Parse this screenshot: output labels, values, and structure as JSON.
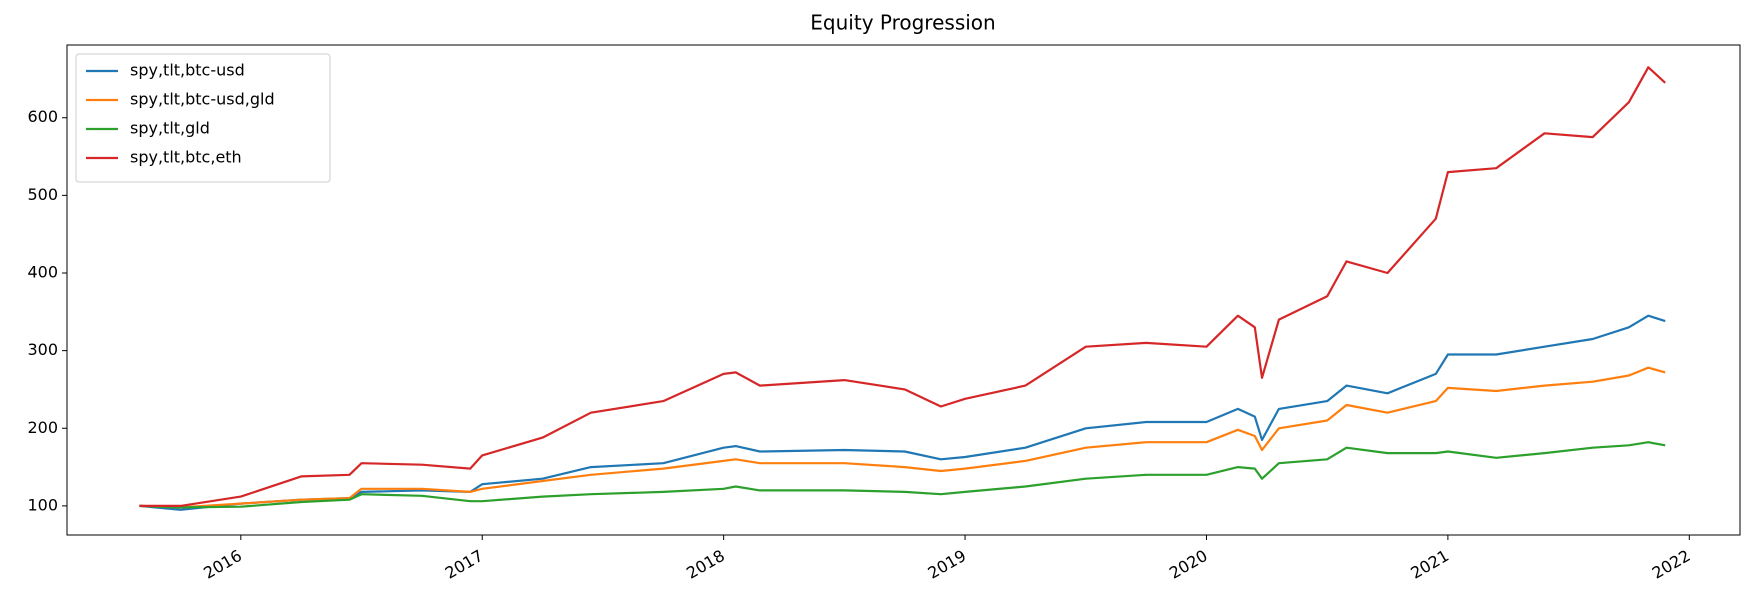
{
  "chart_data": {
    "type": "line",
    "title": "Equity Progression",
    "x": [
      2015.58,
      2015.75,
      2016.0,
      2016.25,
      2016.45,
      2016.5,
      2016.75,
      2016.95,
      2017.0,
      2017.25,
      2017.45,
      2017.75,
      2018.0,
      2018.05,
      2018.15,
      2018.5,
      2018.75,
      2018.9,
      2019.0,
      2019.25,
      2019.5,
      2019.75,
      2020.0,
      2020.13,
      2020.2,
      2020.23,
      2020.3,
      2020.5,
      2020.58,
      2020.75,
      2020.95,
      2021.0,
      2021.2,
      2021.4,
      2021.6,
      2021.75,
      2021.83,
      2021.9
    ],
    "series": [
      {
        "name": "spy,tlt,btc-usd",
        "color": "#1f77b4",
        "values": [
          100,
          95,
          103,
          108,
          110,
          118,
          120,
          118,
          128,
          135,
          150,
          155,
          175,
          177,
          170,
          172,
          170,
          160,
          163,
          175,
          200,
          208,
          208,
          225,
          215,
          185,
          225,
          235,
          255,
          245,
          270,
          295,
          295,
          305,
          315,
          330,
          345,
          338
        ]
      },
      {
        "name": "spy,tlt,btc-usd,gld",
        "color": "#ff7f0e",
        "values": [
          100,
          98,
          103,
          108,
          110,
          122,
          122,
          118,
          122,
          132,
          140,
          148,
          158,
          160,
          155,
          155,
          150,
          145,
          148,
          158,
          175,
          182,
          182,
          198,
          190,
          172,
          200,
          210,
          230,
          220,
          235,
          252,
          248,
          255,
          260,
          268,
          278,
          272
        ]
      },
      {
        "name": "spy,tlt,gld",
        "color": "#2ca02c",
        "values": [
          100,
          98,
          99,
          105,
          108,
          115,
          113,
          106,
          106,
          112,
          115,
          118,
          122,
          125,
          120,
          120,
          118,
          115,
          118,
          125,
          135,
          140,
          140,
          150,
          148,
          135,
          155,
          160,
          175,
          168,
          168,
          170,
          162,
          168,
          175,
          178,
          182,
          178
        ]
      },
      {
        "name": "spy,tlt,btc,eth",
        "color": "#d62728",
        "values": [
          100,
          100,
          112,
          138,
          140,
          155,
          153,
          148,
          165,
          188,
          220,
          235,
          270,
          272,
          255,
          262,
          250,
          228,
          238,
          255,
          305,
          310,
          305,
          345,
          330,
          265,
          340,
          370,
          415,
          400,
          470,
          530,
          535,
          580,
          575,
          620,
          665,
          645
        ]
      }
    ],
    "xlim": [
      2015.28,
      2022.21
    ],
    "xticks": [
      2016,
      2017,
      2018,
      2019,
      2020,
      2021,
      2022
    ],
    "ylim": [
      62.5,
      693.7
    ],
    "yticks": [
      100,
      200,
      300,
      400,
      500,
      600
    ],
    "legend": "upper left"
  }
}
